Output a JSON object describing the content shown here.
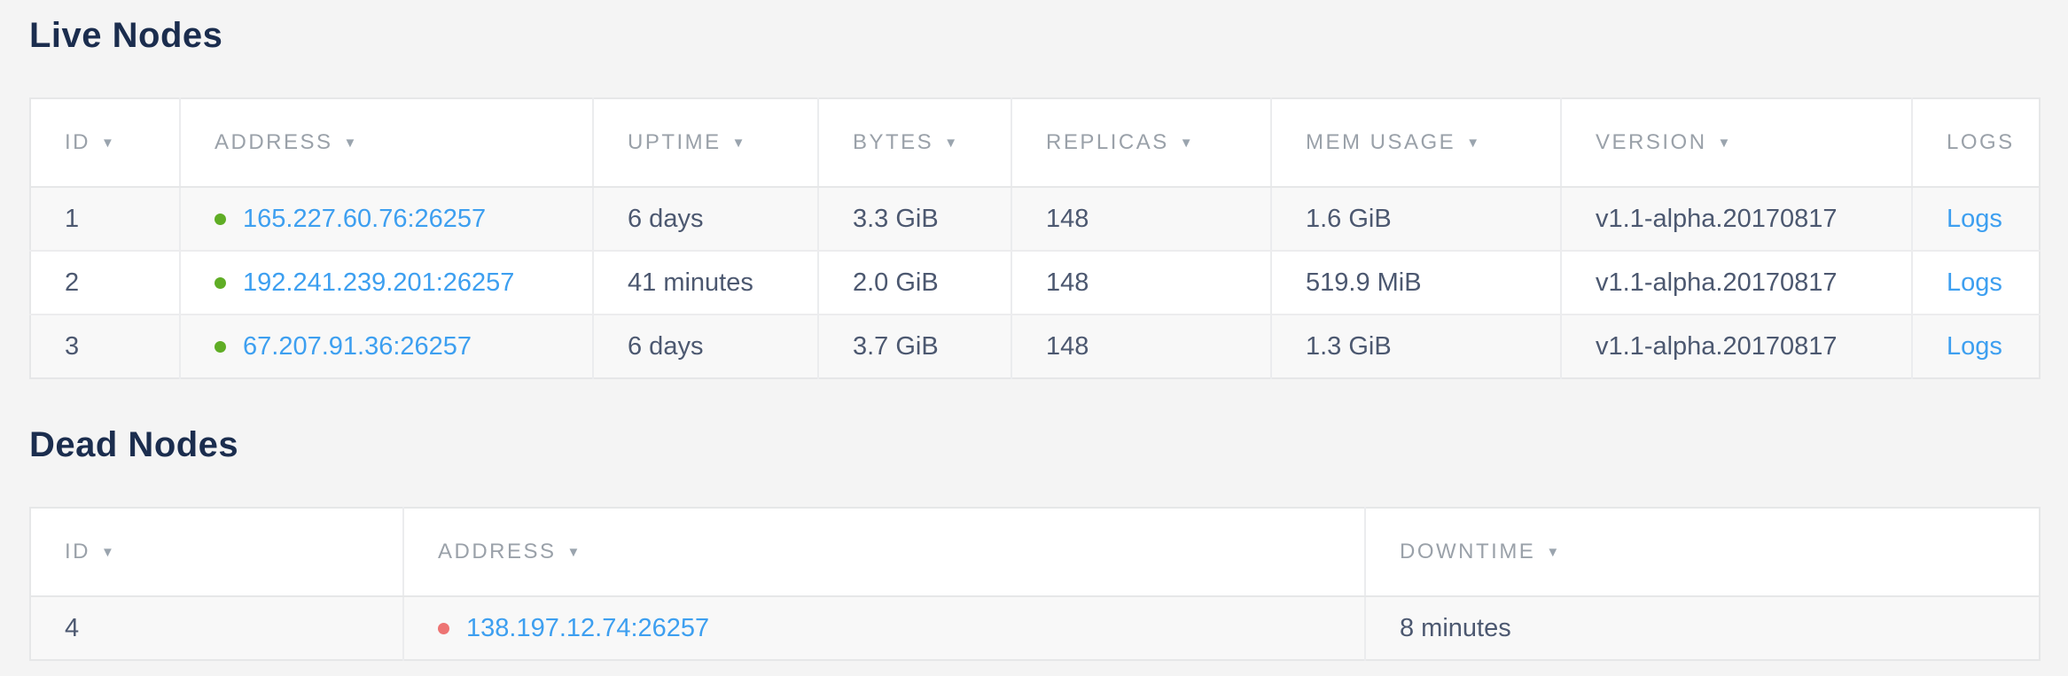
{
  "colors": {
    "live_dot": "#5fad25",
    "dead_dot": "#ed7473",
    "link_blue": "#3d9ff0",
    "title_navy": "#1b2d4e",
    "header_gray": "#9aa1a9"
  },
  "icons": {
    "sort_arrow": "▼"
  },
  "live_nodes": {
    "title": "Live Nodes",
    "columns": [
      {
        "label": "ID",
        "sortable": true
      },
      {
        "label": "ADDRESS",
        "sortable": true
      },
      {
        "label": "UPTIME",
        "sortable": true
      },
      {
        "label": "BYTES",
        "sortable": true
      },
      {
        "label": "REPLICAS",
        "sortable": true
      },
      {
        "label": "MEM USAGE",
        "sortable": true
      },
      {
        "label": "VERSION",
        "sortable": true
      },
      {
        "label": "LOGS",
        "sortable": false
      }
    ],
    "rows": [
      {
        "id": "1",
        "status": "live",
        "address": "165.227.60.76:26257",
        "uptime": "6 days",
        "bytes": "3.3 GiB",
        "replicas": "148",
        "mem_usage": "1.6 GiB",
        "version": "v1.1-alpha.20170817",
        "logs": "Logs"
      },
      {
        "id": "2",
        "status": "live",
        "address": "192.241.239.201:26257",
        "uptime": "41 minutes",
        "bytes": "2.0 GiB",
        "replicas": "148",
        "mem_usage": "519.9 MiB",
        "version": "v1.1-alpha.20170817",
        "logs": "Logs"
      },
      {
        "id": "3",
        "status": "live",
        "address": "67.207.91.36:26257",
        "uptime": "6 days",
        "bytes": "3.7 GiB",
        "replicas": "148",
        "mem_usage": "1.3 GiB",
        "version": "v1.1-alpha.20170817",
        "logs": "Logs"
      }
    ]
  },
  "dead_nodes": {
    "title": "Dead Nodes",
    "columns": [
      {
        "label": "ID",
        "sortable": true
      },
      {
        "label": "ADDRESS",
        "sortable": true
      },
      {
        "label": "DOWNTIME",
        "sortable": true
      }
    ],
    "rows": [
      {
        "id": "4",
        "status": "dead",
        "address": "138.197.12.74:26257",
        "downtime": "8 minutes"
      }
    ]
  }
}
